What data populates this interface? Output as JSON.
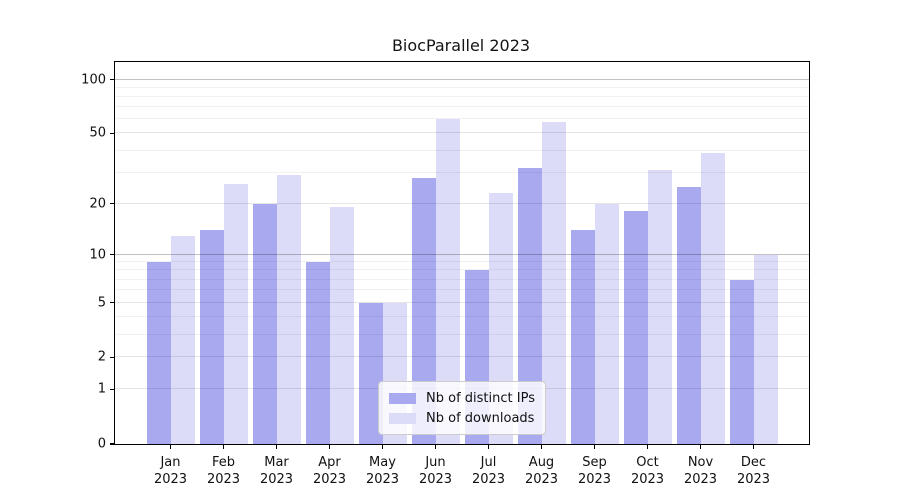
{
  "title": "BiocParallel 2023",
  "chart_data": {
    "type": "bar",
    "title": "BiocParallel 2023",
    "categories": [
      "Jan",
      "Feb",
      "Mar",
      "Apr",
      "May",
      "Jun",
      "Jul",
      "Aug",
      "Sep",
      "Oct",
      "Nov",
      "Dec"
    ],
    "year": "2023",
    "series": [
      {
        "name": "Nb of distinct IPs",
        "color": "#a9a9f0",
        "values": [
          9,
          14,
          20,
          9,
          5,
          28,
          8,
          32,
          14,
          18,
          25,
          7
        ]
      },
      {
        "name": "Nb of downloads",
        "color": "#dcdcf8",
        "values": [
          13,
          26,
          29,
          19,
          5,
          60,
          23,
          58,
          20,
          31,
          39,
          10
        ]
      }
    ],
    "y_scale": "log1p",
    "y_ticks": [
      0,
      1,
      2,
      5,
      10,
      20,
      50,
      100
    ],
    "y_mid_gridlines": [
      1,
      2,
      5,
      20,
      50
    ],
    "y_major_gridlines": [
      10,
      100
    ],
    "y_minor_gridlines": [
      3,
      4,
      6,
      7,
      8,
      9,
      30,
      40,
      60,
      70,
      80,
      90
    ],
    "ylim": [
      0,
      125
    ],
    "grid": true,
    "legend_position": "lower center",
    "axis_color": "#000000",
    "background_color": "#ffffff"
  }
}
